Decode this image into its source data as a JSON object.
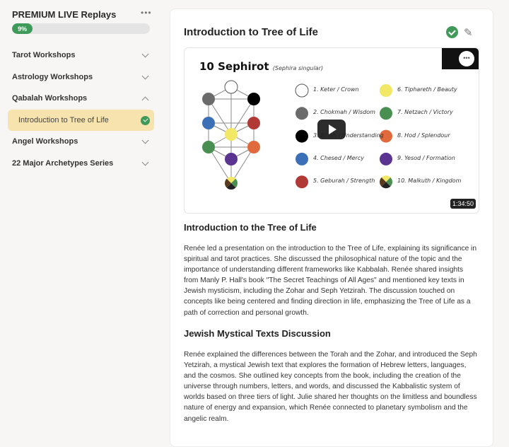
{
  "sidebar": {
    "course_title": "PREMIUM LIVE Replays",
    "more_icon": "ellipsis-icon",
    "progress_label": "9%",
    "progress_value": 9,
    "sections": [
      {
        "label": "Tarot Workshops",
        "expanded": false
      },
      {
        "label": "Astrology Workshops",
        "expanded": false
      },
      {
        "label": "Qabalah Workshops",
        "expanded": true
      },
      {
        "label": "Angel Workshops",
        "expanded": false
      },
      {
        "label": "22 Major Archetypes Series",
        "expanded": false
      }
    ],
    "active_lesson": "Introduction to Tree of Life"
  },
  "colors": {
    "accent": "#3f9a5a",
    "active_bg": "#f6e3ae"
  },
  "main": {
    "title": "Introduction to Tree of Life",
    "video": {
      "slide_title": "10 Sephirot",
      "slide_subtitle": "(Sephira singular)",
      "legend": [
        {
          "label": "1. Keter / Crown",
          "color": "#ffffff"
        },
        {
          "label": "2. Chokmah / Wisdom",
          "color": "#6b6b6b"
        },
        {
          "label": "3. Binah / Understanding",
          "color": "#000000"
        },
        {
          "label": "4. Chesed / Mercy",
          "color": "#3b6fb6"
        },
        {
          "label": "5. Geburah / Strength",
          "color": "#b23a36"
        },
        {
          "label": "6. Tiphareth / Beauty",
          "color": "#f3e866"
        },
        {
          "label": "7. Netzach / Victory",
          "color": "#4a8f52"
        },
        {
          "label": "8. Hod / Splendour",
          "color": "#e06a3c"
        },
        {
          "label": "9. Yesod / Formation",
          "color": "#5b3391"
        },
        {
          "label": "10. Malkuth / Kingdom",
          "color": "multi"
        }
      ],
      "duration": "1:34:50"
    },
    "sections": [
      {
        "heading": "Introduction to the Tree of Life",
        "body": "Renée led a presentation on the introduction to the Tree of Life, explaining its significance in spiritual and tarot practices. She discussed the philosophical nature of the topic and the importance of understanding different frameworks like Kabbalah. Renée shared insights from Manly P. Hall's book \"The Secret Teachings of All Ages\" and mentioned key texts in Jewish mysticism, including the Zohar and Seph Yetzirah. The discussion touched on concepts like being centered and finding direction in life, emphasizing the Tree of Life as a path of correction and personal growth."
      },
      {
        "heading": "Jewish Mystical Texts Discussion",
        "body": "Renée explained the differences between the Torah and the Zohar, and introduced the Seph Yetzirah, a mystical Jewish text that explores the formation of Hebrew letters, languages, and the cosmos. She outlined key concepts from the book, including the creation of the universe through numbers, letters, and words, and discussed the Kabbalistic system of worlds based on three tiers of light. Julie shared her thoughts on the limitless and boundless nature of energy and expansion, which Renée connected to planetary symbolism and the angelic realm."
      }
    ]
  }
}
